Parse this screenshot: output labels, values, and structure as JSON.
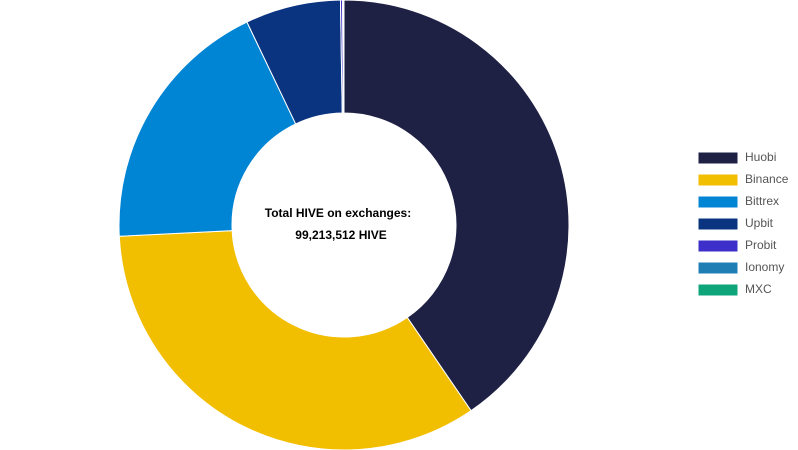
{
  "chart_data": {
    "type": "doughnut",
    "center_text": [
      "Total HIVE on exchanges:",
      "99,213,512 HIVE"
    ],
    "series": [
      {
        "name": "Huobi",
        "color": "#1e2044",
        "values": [
          40.45
        ]
      },
      {
        "name": "Binance",
        "color": "#f2be00",
        "values": [
          33.75
        ]
      },
      {
        "name": "Bittrex",
        "color": "#0084d4",
        "values": [
          18.7
        ]
      },
      {
        "name": "Upbit",
        "color": "#0a3480",
        "values": [
          6.85
        ]
      },
      {
        "name": "Probit",
        "color": "#3d2fc9",
        "values": [
          0.15
        ]
      },
      {
        "name": "Ionomy",
        "color": "#1f7fb4",
        "values": [
          0.05
        ]
      },
      {
        "name": "MXC",
        "color": "#0fa57a",
        "values": [
          0.05
        ]
      }
    ],
    "legend": "right"
  }
}
